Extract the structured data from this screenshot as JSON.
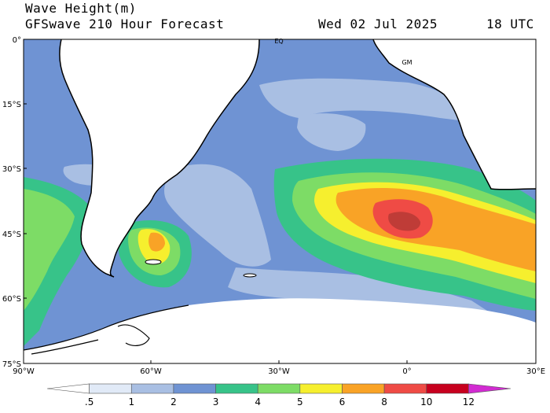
{
  "header": {
    "title": "Wave Height(m)",
    "subtitle": "GFSwave 210 Hour Forecast",
    "date": "Wed 02 Jul 2025",
    "time": "18 UTC"
  },
  "map": {
    "lat_labels": [
      "0°",
      "15°S",
      "30°S",
      "45°S",
      "60°S",
      "75°S"
    ],
    "lon_labels": [
      "90°W",
      "60°W",
      "30°W",
      "0°",
      "30°E"
    ],
    "marker_labels": [
      "EQ",
      "GM"
    ]
  },
  "colorbar": {
    "labels": [
      ".5",
      "1",
      "2",
      "3",
      "4",
      "5",
      "6",
      "8",
      "10",
      "12"
    ],
    "colors": [
      "#ffffff",
      "#e1eaf7",
      "#a9bfe3",
      "#6f93d3",
      "#37c389",
      "#7ddc66",
      "#f6ef2e",
      "#f9a326",
      "#ef4b45",
      "#c7001e",
      "#d22bd2"
    ]
  },
  "palette": {
    "land": "#ffffff",
    "ice": "#ffffff",
    "h1": "#a9bfe3",
    "h2": "#6f93d3",
    "h3": "#37c389",
    "h4": "#7ddc66",
    "h5": "#f6ef2e",
    "h6": "#f9a326",
    "h8": "#ef4b45"
  }
}
